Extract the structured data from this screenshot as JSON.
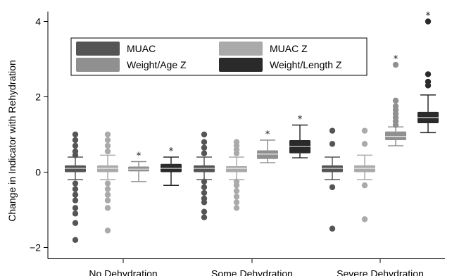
{
  "chart_data": {
    "type": "box",
    "ylabel": "Change in Indicator with Rehydration",
    "xlabel": "",
    "ylim": [
      -2.3,
      4.3
    ],
    "yticks": [
      -2,
      0,
      2,
      4
    ],
    "ytick_labels": [
      "−2",
      "0",
      "2",
      "4"
    ],
    "categories": [
      "No Dehydration",
      "Some Dehydration",
      "Severe Dehydration"
    ],
    "grid": false,
    "legend_position": "top-left",
    "series": [
      {
        "name": "MUAC",
        "color": "#555555",
        "groups": [
          {
            "min": -0.2,
            "q1": 0.0,
            "median": 0.1,
            "q3": 0.18,
            "max": 0.4,
            "star": false,
            "outliers": [
              1.0,
              0.85,
              0.7,
              0.55,
              0.45,
              -0.3,
              -0.45,
              -0.6,
              -0.75,
              -0.95,
              -1.1,
              -1.35,
              -1.8
            ]
          },
          {
            "min": -0.2,
            "q1": 0.0,
            "median": 0.1,
            "q3": 0.18,
            "max": 0.4,
            "star": false,
            "outliers": [
              1.0,
              0.8,
              0.65,
              0.5,
              -0.25,
              -0.4,
              -0.55,
              -0.7,
              -0.8,
              -1.05,
              -1.2
            ]
          },
          {
            "min": -0.2,
            "q1": 0.0,
            "median": 0.1,
            "q3": 0.18,
            "max": 0.4,
            "star": false,
            "outliers": [
              1.1,
              0.75,
              -0.4,
              -1.5
            ]
          }
        ]
      },
      {
        "name": "MUAC Z",
        "color": "#aaaaaa",
        "groups": [
          {
            "min": -0.2,
            "q1": 0.0,
            "median": 0.1,
            "q3": 0.18,
            "max": 0.45,
            "star": false,
            "outliers": [
              1.0,
              0.85,
              0.7,
              0.55,
              -0.3,
              -0.45,
              -0.6,
              -0.75,
              -0.95,
              -1.55
            ]
          },
          {
            "min": -0.2,
            "q1": 0.0,
            "median": 0.1,
            "q3": 0.16,
            "max": 0.4,
            "star": false,
            "outliers": [
              0.8,
              0.7,
              0.6,
              0.5,
              -0.25,
              -0.35,
              -0.5,
              -0.65,
              -0.8,
              -0.95
            ]
          },
          {
            "min": -0.2,
            "q1": 0.0,
            "median": 0.1,
            "q3": 0.18,
            "max": 0.45,
            "star": false,
            "outliers": [
              1.1,
              0.75,
              -0.35,
              -1.25
            ]
          }
        ]
      },
      {
        "name": "Weight/Age Z",
        "color": "#909090",
        "groups": [
          {
            "min": -0.25,
            "q1": 0.02,
            "median": 0.08,
            "q3": 0.15,
            "max": 0.28,
            "star": true,
            "outliers": []
          },
          {
            "min": 0.25,
            "q1": 0.35,
            "median": 0.48,
            "q3": 0.58,
            "max": 0.85,
            "star": true,
            "outliers": []
          },
          {
            "min": 0.7,
            "q1": 0.85,
            "median": 0.95,
            "q3": 1.08,
            "max": 1.2,
            "star": true,
            "outliers": [
              1.25,
              1.35,
              1.45,
              1.55,
              1.65,
              1.75,
              1.9,
              2.85
            ]
          }
        ]
      },
      {
        "name": "Weight/Length Z",
        "color": "#2a2a2a",
        "groups": [
          {
            "min": -0.35,
            "q1": 0.0,
            "median": 0.1,
            "q3": 0.22,
            "max": 0.4,
            "star": true,
            "outliers": []
          },
          {
            "min": 0.38,
            "q1": 0.5,
            "median": 0.68,
            "q3": 0.85,
            "max": 1.25,
            "star": true,
            "outliers": []
          },
          {
            "min": 1.05,
            "q1": 1.3,
            "median": 1.45,
            "q3": 1.6,
            "max": 2.05,
            "star": true,
            "outliers": [
              2.3,
              2.4,
              2.6,
              4.0
            ]
          }
        ]
      }
    ],
    "annotation_symbol": "*"
  }
}
